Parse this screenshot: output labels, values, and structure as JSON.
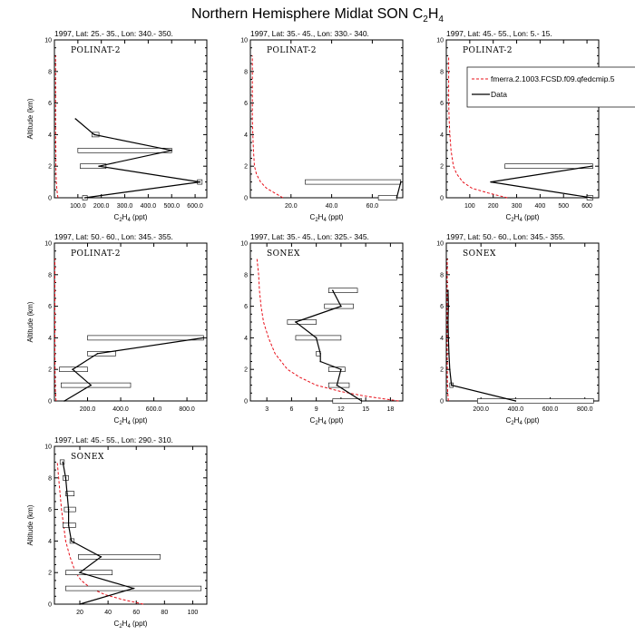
{
  "figure": {
    "title_main": "Northern Hemisphere Midlat SON C",
    "title_sub": "2",
    "title_mid": "H",
    "title_sub2": "4"
  },
  "legend": {
    "model_label": "fmerra.2.1003.FCSD.f09.qfedcmip.5",
    "data_label": "Data"
  },
  "colors": {
    "model": "#e8101a",
    "data": "#000000"
  },
  "chart_data": [
    {
      "type": "line",
      "title": "1997, Lat: 25.- 35., Lon: 340.- 350.",
      "campaign": "POLINAT-2",
      "xlabel": "C2H4 (ppt)",
      "ylabel": "Altitude (km)",
      "xlim": [
        0,
        650
      ],
      "ylim": [
        0,
        10
      ],
      "xticks": [
        100,
        200,
        300,
        400,
        500,
        600
      ],
      "xticklabels": [
        "100.0",
        "200.0",
        "300.0",
        "400.0",
        "500.0",
        "600.0"
      ],
      "model": {
        "x": [
          15,
          12,
          10,
          8,
          7,
          6,
          6,
          5,
          5,
          5,
          5,
          5
        ],
        "y": [
          0,
          0.3,
          0.6,
          1,
          1.5,
          2,
          3,
          4,
          5,
          6,
          7,
          9
        ]
      },
      "data": {
        "x": [
          130,
          620,
          190,
          500,
          170,
          90
        ],
        "y": [
          0,
          1,
          2,
          3,
          4,
          5
        ]
      },
      "bars": [
        {
          "lo": 120,
          "hi": 140,
          "y": 0
        },
        {
          "lo": 610,
          "hi": 630,
          "y": 1
        },
        {
          "lo": 110,
          "hi": 220,
          "y": 2
        },
        {
          "lo": 100,
          "hi": 500,
          "y": 3
        },
        {
          "lo": 160,
          "hi": 190,
          "y": 4
        }
      ]
    },
    {
      "type": "line",
      "title": "1997, Lat: 35.- 45., Lon: 330.- 340.",
      "campaign": "POLINAT-2",
      "xlabel": "C2H4 (ppt)",
      "ylabel": "",
      "xlim": [
        0,
        75
      ],
      "ylim": [
        0,
        10
      ],
      "xticks": [
        20,
        40,
        60
      ],
      "xticklabels": [
        "20.0",
        "40.0",
        "60.0"
      ],
      "model": {
        "x": [
          16,
          12,
          8,
          5,
          3,
          2,
          1.5,
          1.2,
          1,
          1,
          1,
          1
        ],
        "y": [
          0,
          0.3,
          0.6,
          1,
          1.5,
          2,
          3,
          4,
          5,
          6,
          7,
          9
        ]
      },
      "data": {
        "x": [
          72,
          74
        ],
        "y": [
          0,
          1
        ]
      },
      "bars": [
        {
          "lo": 63,
          "hi": 72,
          "y": 0
        },
        {
          "lo": 27,
          "hi": 74,
          "y": 1
        }
      ]
    },
    {
      "type": "line",
      "title": "1997, Lat: 45.- 55., Lon: 5.- 15.",
      "campaign": "POLINAT-2",
      "xlabel": "C2H4 (ppt)",
      "ylabel": "",
      "xlim": [
        0,
        650
      ],
      "ylim": [
        0,
        10
      ],
      "xticks": [
        100,
        200,
        300,
        400,
        500,
        600
      ],
      "xticklabels": [
        "100",
        "200",
        "300",
        "400",
        "500",
        "600"
      ],
      "model": {
        "x": [
          260,
          180,
          110,
          70,
          45,
          30,
          20,
          15,
          12,
          10,
          10,
          10
        ],
        "y": [
          0,
          0.3,
          0.6,
          1,
          1.5,
          2,
          3,
          4,
          5,
          6,
          7,
          9
        ]
      },
      "data": {
        "x": [
          620,
          190,
          620
        ],
        "y": [
          0,
          1,
          2
        ]
      },
      "bars": [
        {
          "lo": 600,
          "hi": 625,
          "y": 0
        },
        {
          "lo": 250,
          "hi": 625,
          "y": 2
        }
      ]
    },
    {
      "type": "line",
      "title": "1997, Lat: 50.- 60., Lon: 345.- 355.",
      "campaign": "POLINAT-2",
      "xlabel": "C2H4 (ppt)",
      "ylabel": "Altitude (km)",
      "xlim": [
        0,
        920
      ],
      "ylim": [
        0,
        10
      ],
      "xticks": [
        200,
        400,
        600,
        800
      ],
      "xticklabels": [
        "200.0",
        "400.0",
        "600.0",
        "800.0"
      ],
      "model": {
        "x": [
          10,
          8,
          6,
          5,
          4,
          4,
          3,
          3,
          3,
          3,
          3,
          3
        ],
        "y": [
          0,
          0.3,
          0.6,
          1,
          1.5,
          2,
          3,
          4,
          5,
          6,
          7,
          9
        ]
      },
      "data": {
        "x": [
          60,
          220,
          110,
          260,
          900
        ],
        "y": [
          0,
          1,
          2,
          3,
          4
        ]
      },
      "bars": [
        {
          "lo": 40,
          "hi": 460,
          "y": 1
        },
        {
          "lo": 30,
          "hi": 200,
          "y": 2
        },
        {
          "lo": 200,
          "hi": 370,
          "y": 3
        },
        {
          "lo": 200,
          "hi": 900,
          "y": 4
        }
      ]
    },
    {
      "type": "line",
      "title": "1997, Lat: 35.- 45., Lon: 325.- 345.",
      "campaign": "SONEX",
      "xlabel": "C2H4 (ppt)",
      "ylabel": "",
      "xlim": [
        1,
        19.5
      ],
      "ylim": [
        0,
        10
      ],
      "xticks": [
        3,
        6,
        9,
        12,
        15,
        18
      ],
      "xticklabels": [
        "3",
        "6",
        "9",
        "12",
        "15",
        "18"
      ],
      "model": {
        "x": [
          19,
          15,
          12,
          9,
          7,
          5.5,
          4,
          3.2,
          2.6,
          2.3,
          2.1,
          2,
          1.8
        ],
        "y": [
          0,
          0.3,
          0.6,
          1,
          1.5,
          2,
          3,
          4,
          5,
          6,
          7,
          8,
          9
        ]
      },
      "data": {
        "x": [
          14.5,
          11.5,
          12,
          9.5,
          9.5,
          9,
          6.5,
          12,
          11
        ],
        "y": [
          0,
          1,
          2,
          2.5,
          3,
          4,
          5,
          6,
          7
        ]
      },
      "bars": [
        {
          "lo": 11,
          "hi": 14.5,
          "y": 0
        },
        {
          "lo": 10.5,
          "hi": 13,
          "y": 1
        },
        {
          "lo": 10.5,
          "hi": 12.5,
          "y": 2
        },
        {
          "lo": 9,
          "hi": 9.5,
          "y": 3
        },
        {
          "lo": 6.5,
          "hi": 12,
          "y": 4
        },
        {
          "lo": 5.5,
          "hi": 9,
          "y": 5
        },
        {
          "lo": 10,
          "hi": 13.5,
          "y": 6
        },
        {
          "lo": 10.5,
          "hi": 14,
          "y": 7
        }
      ]
    },
    {
      "type": "line",
      "title": "1997, Lat: 50.- 60., Lon: 345.- 355.",
      "campaign": "SONEX",
      "xlabel": "C2H4 (ppt)",
      "ylabel": "",
      "xlim": [
        0,
        880
      ],
      "ylim": [
        0,
        10
      ],
      "xticks": [
        200,
        400,
        600,
        800
      ],
      "xticklabels": [
        "200.0",
        "400.0",
        "600.0",
        "800.0"
      ],
      "model": {
        "x": [
          12,
          10,
          8,
          7,
          6,
          6,
          5,
          5,
          5,
          5,
          5,
          5
        ],
        "y": [
          0,
          0.3,
          0.6,
          1,
          1.5,
          2,
          3,
          4,
          5,
          6,
          7,
          9
        ]
      },
      "data": {
        "x": [
          400,
          30,
          20,
          15,
          12,
          10,
          12,
          10
        ],
        "y": [
          0,
          1,
          2,
          3,
          4,
          5,
          6,
          7
        ]
      },
      "bars": [
        {
          "lo": 180,
          "hi": 850,
          "y": 0
        },
        {
          "lo": 20,
          "hi": 40,
          "y": 1
        }
      ]
    },
    {
      "type": "line",
      "title": "1997, Lat: 45.- 55., Lon: 290.- 310.",
      "campaign": "SONEX",
      "xlabel": "C2H4 (ppt)",
      "ylabel": "Altitude (km)",
      "xlim": [
        2,
        110
      ],
      "ylim": [
        0,
        10
      ],
      "xticks": [
        20,
        40,
        60,
        80,
        100
      ],
      "xticklabels": [
        "20",
        "40",
        "60",
        "80",
        "100"
      ],
      "model": {
        "x": [
          65,
          50,
          38,
          28,
          21,
          17,
          13,
          10,
          8.5,
          7,
          6,
          4
        ],
        "y": [
          0,
          0.3,
          0.6,
          1,
          1.5,
          2,
          3,
          4,
          5,
          6,
          7,
          9
        ]
      },
      "data": {
        "x": [
          20,
          58,
          20,
          35,
          14,
          12,
          12,
          11,
          10,
          8
        ],
        "y": [
          0,
          1,
          2,
          3,
          4,
          5,
          6,
          7,
          8,
          9
        ]
      },
      "bars": [
        {
          "lo": 10,
          "hi": 106,
          "y": 1
        },
        {
          "lo": 10,
          "hi": 43,
          "y": 2
        },
        {
          "lo": 19,
          "hi": 77,
          "y": 3
        },
        {
          "lo": 13,
          "hi": 16,
          "y": 4
        },
        {
          "lo": 8,
          "hi": 17,
          "y": 5
        },
        {
          "lo": 9,
          "hi": 17,
          "y": 6
        },
        {
          "lo": 10,
          "hi": 16,
          "y": 7
        },
        {
          "lo": 8,
          "hi": 12,
          "y": 8
        },
        {
          "lo": 6,
          "hi": 9,
          "y": 9
        }
      ]
    }
  ]
}
